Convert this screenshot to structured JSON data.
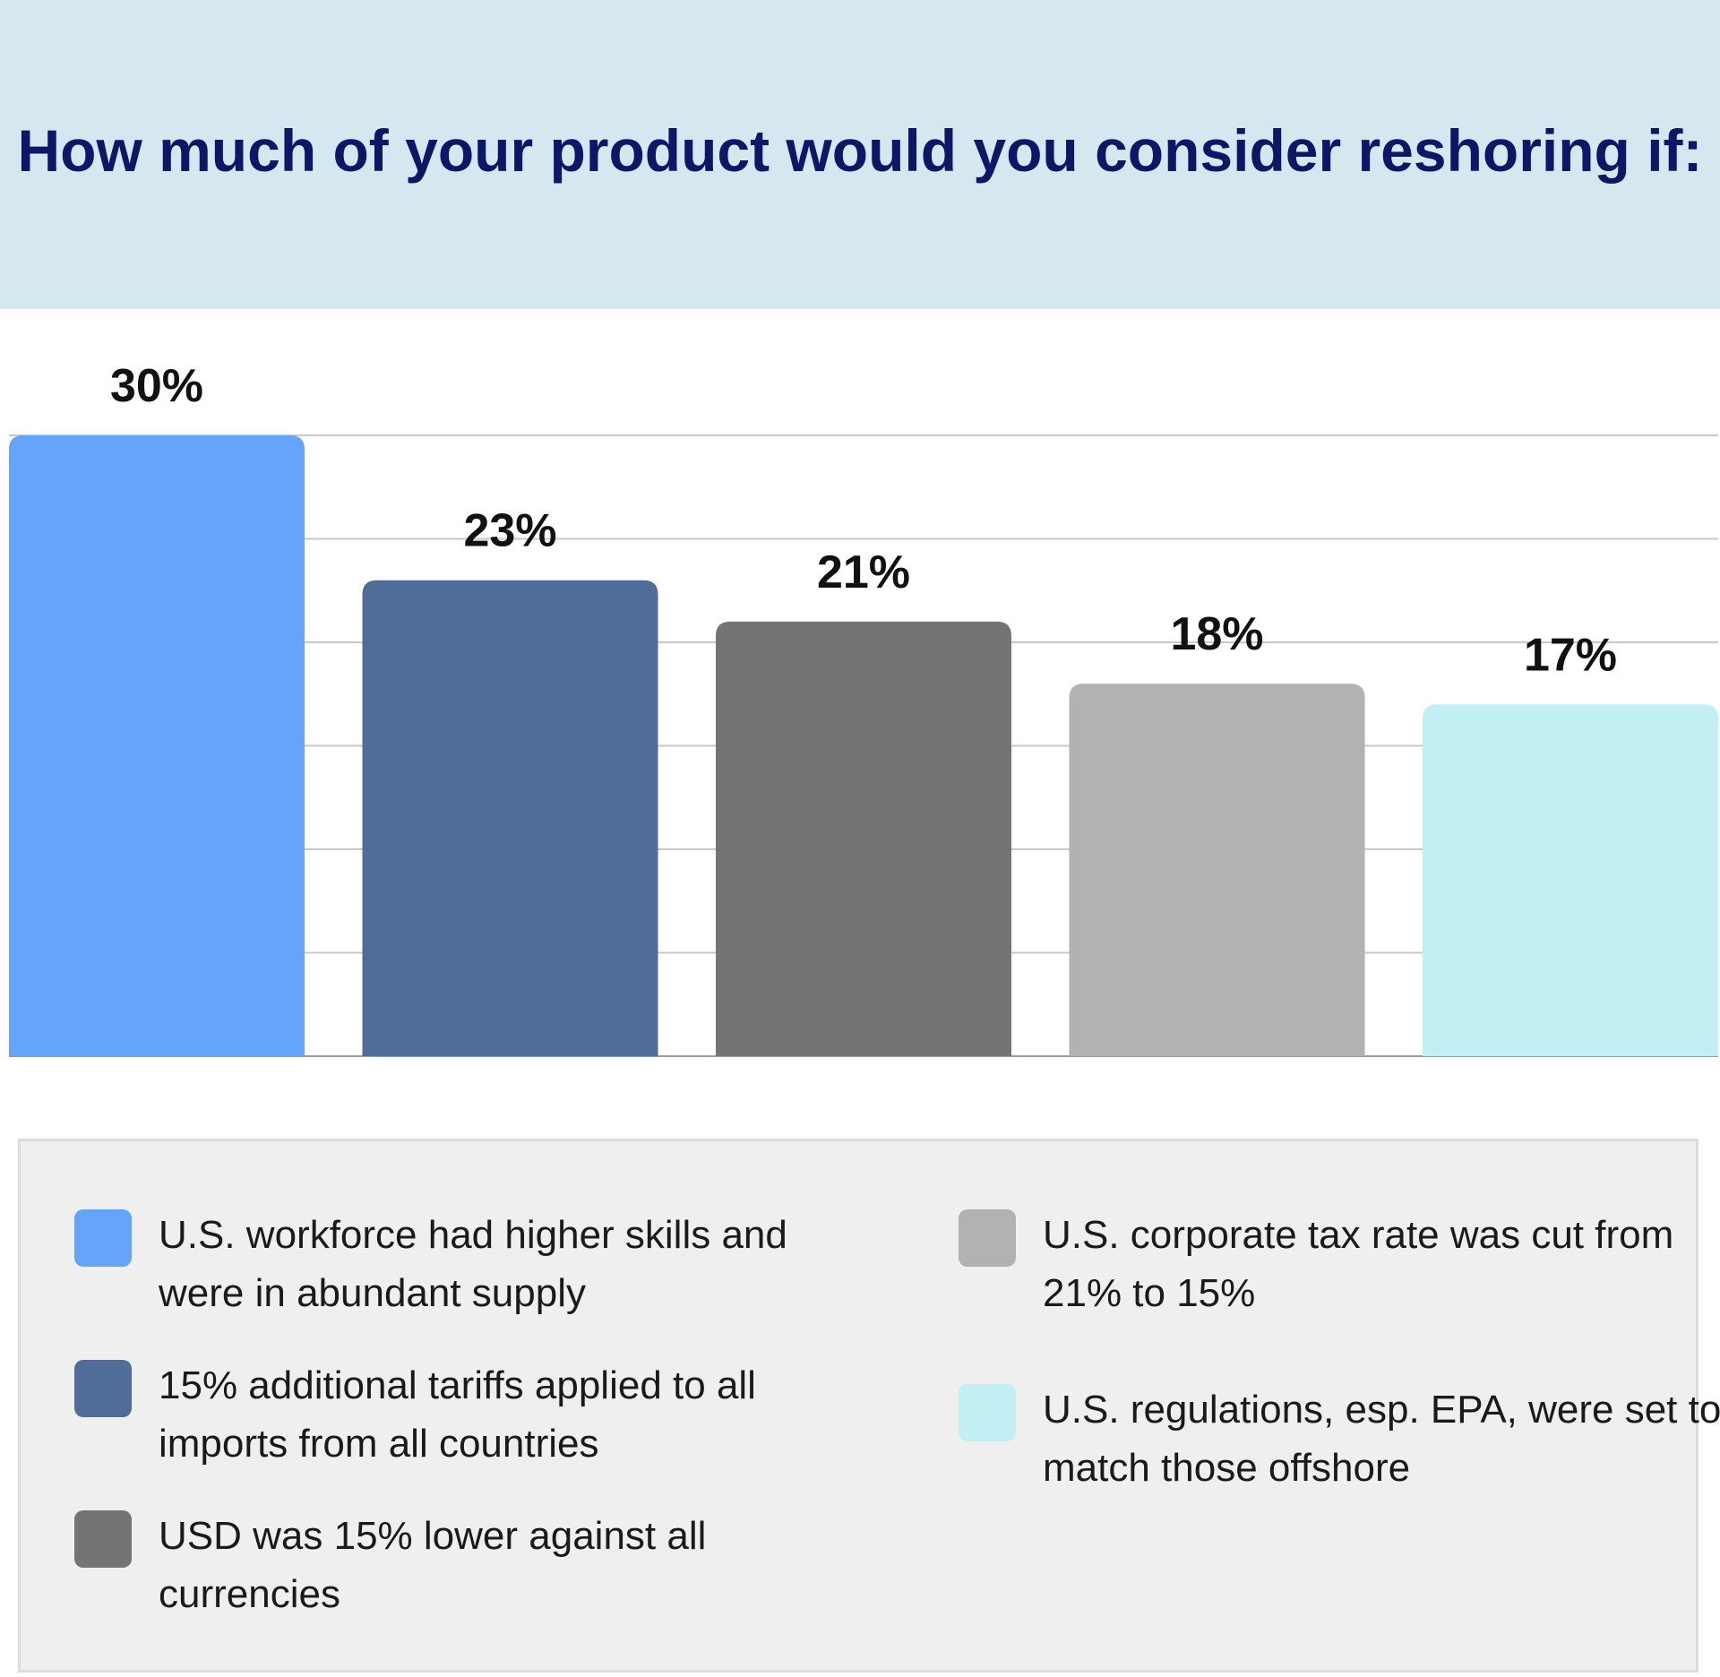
{
  "title": "How much of your product would you consider reshoring if:",
  "chart_data": {
    "type": "bar",
    "categories": [
      "U.S. workforce had higher skills and were in abundant supply",
      "15% additional tariffs applied to all imports from all countries",
      "USD was 15% lower against all currencies",
      "U.S. corporate tax rate was cut from 21% to 15%",
      "U.S. regulations, esp. EPA, were set to match those offshore"
    ],
    "values": [
      30,
      23,
      21,
      18,
      17
    ],
    "labels": [
      "30%",
      "23%",
      "21%",
      "18%",
      "17%"
    ],
    "colors": [
      "#65a5f9",
      "#506d99",
      "#747474",
      "#b3b2b3",
      "#c2eff4"
    ],
    "ylim": [
      0,
      30
    ],
    "grid": true,
    "xlabel": "",
    "ylabel": "",
    "legend_position": "bottom"
  },
  "legend": [
    {
      "label": "U.S. workforce had higher skills and were in abundant supply",
      "color": "#65a5f9"
    },
    {
      "label": "15% additional tariffs applied to all imports from all countries",
      "color": "#506d99"
    },
    {
      "label": "USD was 15% lower against all currencies",
      "color": "#747474"
    },
    {
      "label": "U.S. corporate tax rate was cut from 21% to 15%",
      "color": "#b3b2b3"
    },
    {
      "label": "U.S. regulations, esp. EPA, were set to match those offshore",
      "color": "#c2eff4"
    }
  ]
}
